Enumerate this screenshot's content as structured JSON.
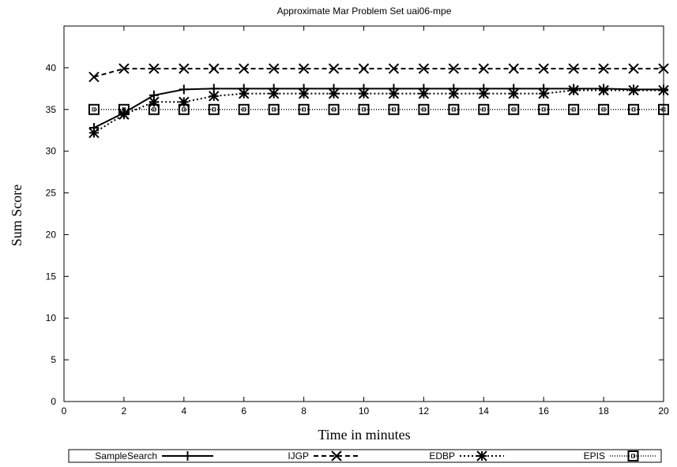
{
  "chart_data": {
    "type": "line",
    "title": "Approximate Mar Problem Set uai06-mpe",
    "xlabel": "Time in minutes",
    "ylabel": "Sum Score",
    "xlim": [
      0,
      20
    ],
    "ylim": [
      0,
      45
    ],
    "xticks": [
      0,
      2,
      4,
      6,
      8,
      10,
      12,
      14,
      16,
      18,
      20
    ],
    "yticks": [
      0,
      5,
      10,
      15,
      20,
      25,
      30,
      35,
      40
    ],
    "grid": false,
    "legend_position": "bottom",
    "x": [
      1,
      2,
      3,
      4,
      5,
      6,
      7,
      8,
      9,
      10,
      11,
      12,
      13,
      14,
      15,
      16,
      17,
      18,
      19,
      20
    ],
    "series": [
      {
        "name": "SampleSearch",
        "marker": "plus",
        "dash": "solid",
        "values": [
          32.8,
          34.6,
          36.7,
          37.4,
          37.5,
          37.5,
          37.5,
          37.5,
          37.5,
          37.5,
          37.5,
          37.5,
          37.5,
          37.5,
          37.5,
          37.5,
          37.5,
          37.5,
          37.4,
          37.4
        ]
      },
      {
        "name": "IJGP",
        "marker": "cross",
        "dash": "dashed",
        "values": [
          38.9,
          39.9,
          39.9,
          39.9,
          39.9,
          39.9,
          39.9,
          39.9,
          39.9,
          39.9,
          39.9,
          39.9,
          39.9,
          39.9,
          39.9,
          39.9,
          39.9,
          39.9,
          39.9,
          39.9
        ]
      },
      {
        "name": "EDBP",
        "marker": "star",
        "dash": "dotted",
        "values": [
          32.2,
          34.4,
          35.9,
          35.9,
          36.6,
          36.9,
          36.9,
          36.9,
          36.9,
          36.9,
          36.9,
          36.9,
          36.9,
          36.9,
          36.9,
          36.9,
          37.3,
          37.3,
          37.3,
          37.3
        ]
      },
      {
        "name": "EPIS",
        "marker": "square",
        "dash": "dotted-fine",
        "values": [
          35.0,
          35.0,
          35.0,
          35.0,
          35.0,
          35.0,
          35.0,
          35.0,
          35.0,
          35.0,
          35.0,
          35.0,
          35.0,
          35.0,
          35.0,
          35.0,
          35.0,
          35.0,
          35.0,
          35.0
        ]
      }
    ]
  }
}
